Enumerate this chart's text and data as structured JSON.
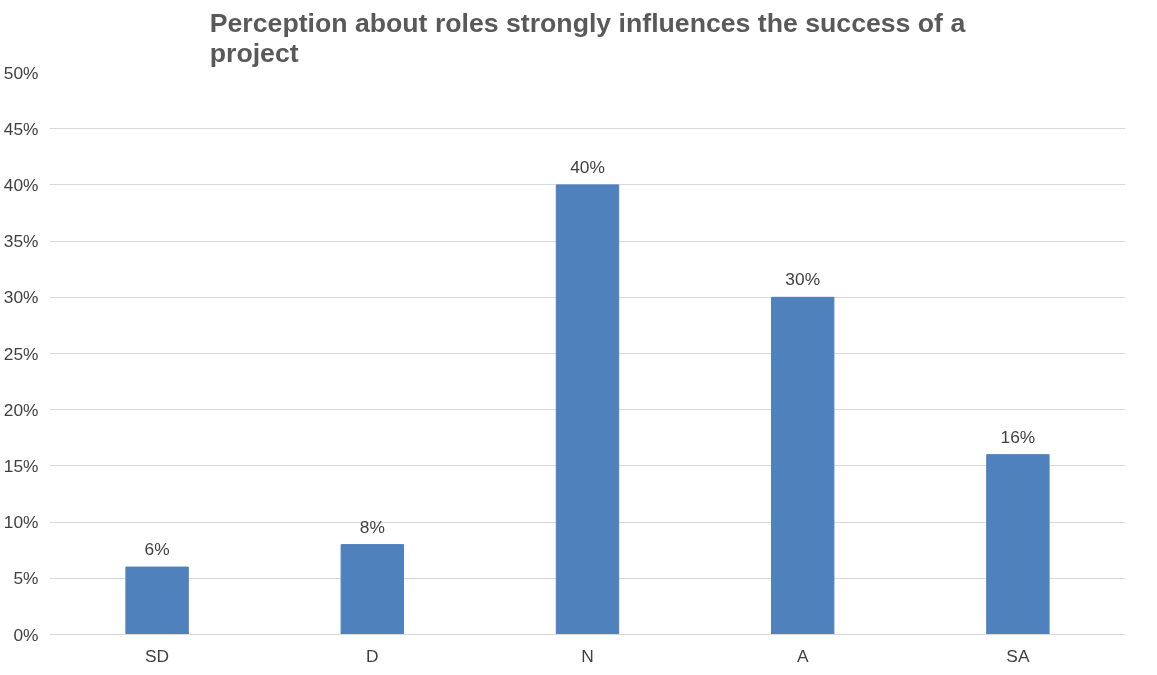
{
  "chart_data": {
    "type": "bar",
    "title": "Perception about roles strongly influences the success of a project",
    "categories": [
      "SD",
      "D",
      "N",
      "A",
      "SA"
    ],
    "values": [
      6,
      8,
      40,
      30,
      16
    ],
    "value_labels": [
      "6%",
      "8%",
      "40%",
      "30%",
      "16%"
    ],
    "color": "#4f81bd",
    "ylim": [
      0,
      50
    ],
    "yticks": [
      {
        "value": 0,
        "label": "0%"
      },
      {
        "value": 5,
        "label": "5%"
      },
      {
        "value": 10,
        "label": "10%"
      },
      {
        "value": 15,
        "label": "15%"
      },
      {
        "value": 20,
        "label": "20%"
      },
      {
        "value": 25,
        "label": "25%"
      },
      {
        "value": 30,
        "label": "30%"
      },
      {
        "value": 35,
        "label": "35%"
      },
      {
        "value": 40,
        "label": "40%"
      },
      {
        "value": 45,
        "label": "45%"
      },
      {
        "value": 50,
        "label": "50%"
      }
    ],
    "grid": "y"
  }
}
